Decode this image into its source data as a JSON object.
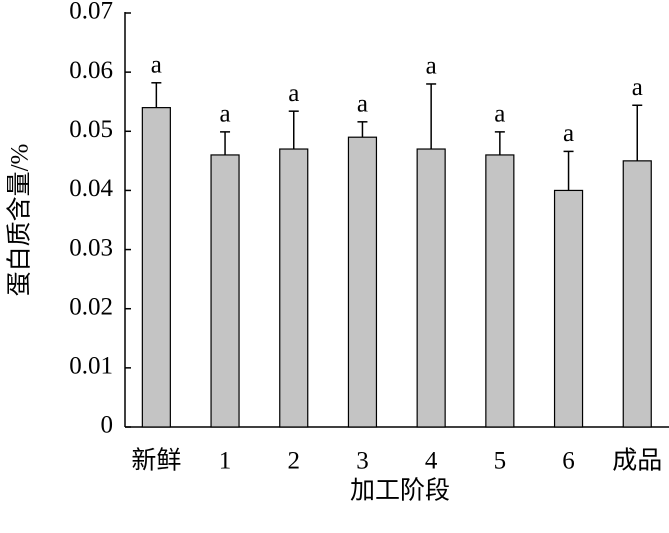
{
  "chart_data": {
    "type": "bar",
    "x_label": "加工阶段",
    "y_label": "蛋白质含量/%",
    "categories": [
      "新鲜",
      "1",
      "2",
      "3",
      "4",
      "5",
      "6",
      "成品"
    ],
    "values": [
      0.054,
      0.046,
      0.047,
      0.049,
      0.047,
      0.046,
      0.04,
      0.045
    ],
    "errors": [
      0.0042,
      0.0039,
      0.0064,
      0.0026,
      0.011,
      0.0039,
      0.0066,
      0.0094
    ],
    "annotations": [
      "a",
      "a",
      "a",
      "a",
      "a",
      "a",
      "a",
      "a"
    ],
    "color": "#c4c4c4",
    "ylim": [
      0,
      0.07
    ],
    "yticks": [
      0,
      0.01,
      0.02,
      0.03,
      0.04,
      0.05,
      0.06,
      0.07
    ]
  }
}
